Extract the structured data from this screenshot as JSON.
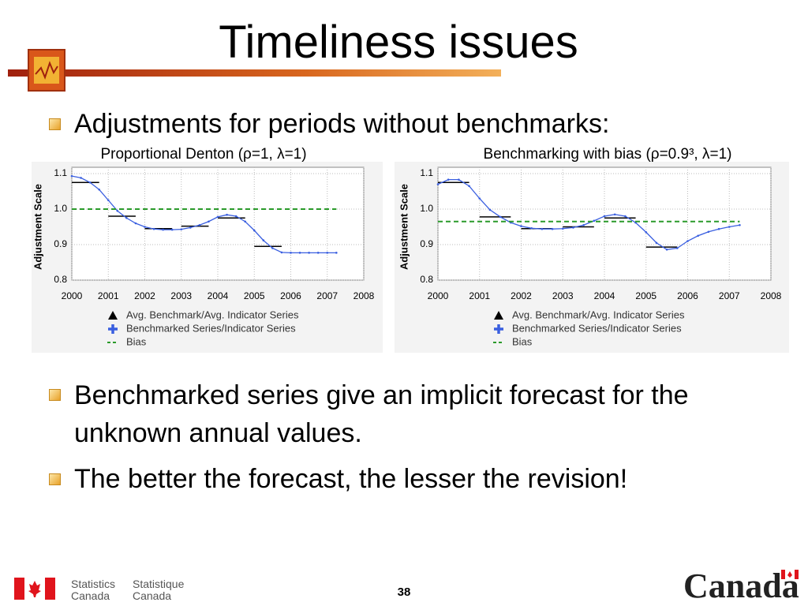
{
  "title": "Timeliness issues",
  "bullets": [
    "Adjustments for periods without benchmarks:",
    "Benchmarked series give an implicit forecast for the unknown annual values.",
    "The better the forecast, the lesser the revision!"
  ],
  "footer": {
    "agency_en": [
      "Statistics",
      "Canada"
    ],
    "agency_fr": [
      "Statistique",
      "Canada"
    ],
    "page": "38",
    "wordmark": "Canada"
  },
  "chart_data": [
    {
      "type": "line",
      "title": "Proportional Denton (ρ=1, λ=1)",
      "y_label": "Adjustment Scale",
      "xlim": [
        2000,
        2008
      ],
      "xticks": [
        2000,
        2001,
        2002,
        2003,
        2004,
        2005,
        2006,
        2007,
        2008
      ],
      "ylim": [
        0.8,
        1.1
      ],
      "yticks": [
        0.8,
        0.9,
        {
          "value": 1,
          "label": "1.0"
        },
        1.1
      ],
      "grid": true,
      "series": [
        {
          "name": "Avg. Benchmark/Avg. Indicator Series",
          "color": "#000000",
          "style": "segment",
          "x": [
            2000,
            2001,
            2002,
            2003,
            2004,
            2005
          ],
          "x_end": [
            2000.75,
            2001.75,
            2002.75,
            2003.75,
            2004.75,
            2005.75
          ],
          "values": [
            1.075,
            0.98,
            0.945,
            0.952,
            0.975,
            0.895
          ]
        },
        {
          "name": "Benchmarked Series/Indicator Series",
          "color": "#3a5fe0",
          "style": "line",
          "x": [
            2000,
            2000.25,
            2000.5,
            2000.75,
            2001,
            2001.25,
            2001.5,
            2001.75,
            2002,
            2002.25,
            2002.5,
            2002.75,
            2003,
            2003.25,
            2003.5,
            2003.75,
            2004,
            2004.25,
            2004.5,
            2004.75,
            2005,
            2005.25,
            2005.5,
            2005.75,
            2006,
            2006.25,
            2006.5,
            2006.75,
            2007,
            2007.25
          ],
          "values": [
            1.093,
            1.088,
            1.075,
            1.055,
            1.025,
            0.995,
            0.975,
            0.96,
            0.95,
            0.944,
            0.942,
            0.942,
            0.943,
            0.948,
            0.955,
            0.965,
            0.978,
            0.984,
            0.98,
            0.965,
            0.94,
            0.912,
            0.89,
            0.878,
            0.877,
            0.877,
            0.877,
            0.877,
            0.877,
            0.877
          ]
        },
        {
          "name": "Bias",
          "color": "#2a9a2a",
          "style": "dashed",
          "x": [
            2000,
            2007.25
          ],
          "values": [
            1,
            1
          ]
        }
      ]
    },
    {
      "type": "line",
      "title": "Benchmarking with bias (ρ=0.9³, λ=1)",
      "y_label": "Adjustment Scale",
      "xlim": [
        2000,
        2008
      ],
      "xticks": [
        2000,
        2001,
        2002,
        2003,
        2004,
        2005,
        2006,
        2007,
        2008
      ],
      "ylim": [
        0.8,
        1.1
      ],
      "yticks": [
        0.8,
        0.9,
        {
          "value": 1,
          "label": "1.0"
        },
        1.1
      ],
      "grid": true,
      "series": [
        {
          "name": "Avg. Benchmark/Avg. Indicator Series",
          "color": "#000000",
          "style": "segment",
          "x": [
            2000,
            2001,
            2002,
            2003,
            2004,
            2005
          ],
          "x_end": [
            2000.75,
            2001.75,
            2002.75,
            2003.75,
            2004.75,
            2005.75
          ],
          "values": [
            1.075,
            0.978,
            0.945,
            0.95,
            0.975,
            0.893
          ]
        },
        {
          "name": "Benchmarked Series/Indicator Series",
          "color": "#3a5fe0",
          "style": "line",
          "x": [
            2000,
            2000.25,
            2000.5,
            2000.75,
            2001,
            2001.25,
            2001.5,
            2001.75,
            2002,
            2002.25,
            2002.5,
            2002.75,
            2003,
            2003.25,
            2003.5,
            2003.75,
            2004,
            2004.25,
            2004.5,
            2004.75,
            2005,
            2005.25,
            2005.5,
            2005.75,
            2006,
            2006.25,
            2006.5,
            2006.75,
            2007,
            2007.25
          ],
          "values": [
            1.07,
            1.083,
            1.083,
            1.065,
            1.03,
            0.998,
            0.978,
            0.962,
            0.952,
            0.946,
            0.944,
            0.944,
            0.945,
            0.948,
            0.955,
            0.967,
            0.98,
            0.985,
            0.98,
            0.962,
            0.935,
            0.905,
            0.886,
            0.89,
            0.91,
            0.925,
            0.936,
            0.944,
            0.95,
            0.955
          ]
        },
        {
          "name": "Bias",
          "color": "#2a9a2a",
          "style": "dashed",
          "x": [
            2000,
            2007.25
          ],
          "values": [
            0.965,
            0.965
          ]
        }
      ]
    }
  ]
}
